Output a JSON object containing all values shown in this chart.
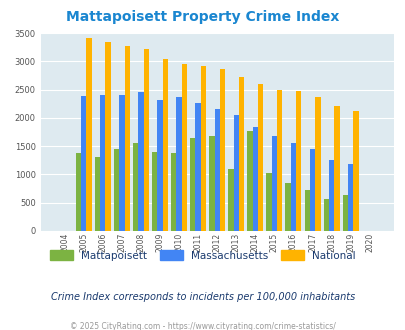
{
  "title": "Mattapoisett Property Crime Index",
  "years": [
    2004,
    2005,
    2006,
    2007,
    2008,
    2009,
    2010,
    2011,
    2012,
    2013,
    2014,
    2015,
    2016,
    2017,
    2018,
    2019,
    2020
  ],
  "mattapoisett": [
    0,
    1380,
    1310,
    1450,
    1560,
    1390,
    1370,
    1640,
    1680,
    1090,
    1760,
    1020,
    840,
    720,
    565,
    640,
    0
  ],
  "massachusetts": [
    0,
    2380,
    2410,
    2410,
    2450,
    2320,
    2360,
    2270,
    2160,
    2050,
    1840,
    1680,
    1560,
    1450,
    1260,
    1180,
    0
  ],
  "national": [
    0,
    3420,
    3340,
    3270,
    3210,
    3040,
    2950,
    2920,
    2860,
    2720,
    2600,
    2490,
    2470,
    2370,
    2210,
    2120,
    0
  ],
  "mattapoisett_color": "#7cb342",
  "massachusetts_color": "#4285f4",
  "national_color": "#ffb300",
  "bg_color": "#deeaf0",
  "grid_color": "#ffffff",
  "ylim": [
    0,
    3500
  ],
  "yticks": [
    0,
    500,
    1000,
    1500,
    2000,
    2500,
    3000,
    3500
  ],
  "subtitle": "Crime Index corresponds to incidents per 100,000 inhabitants",
  "footer": "© 2025 CityRating.com - https://www.cityrating.com/crime-statistics/",
  "title_color": "#1a86d0",
  "subtitle_color": "#1a3a6e",
  "footer_color": "#999999",
  "legend_text_color": "#1a3a6e"
}
